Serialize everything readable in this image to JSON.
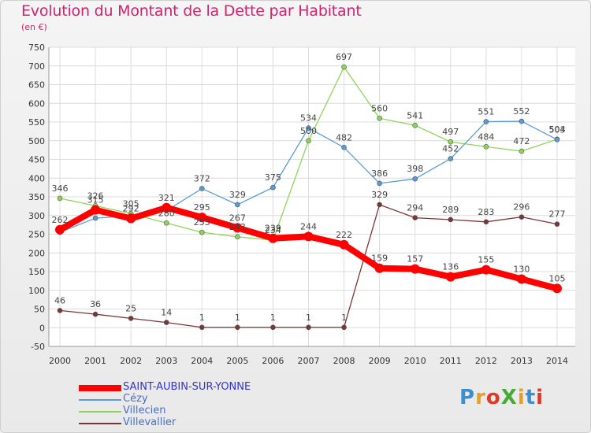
{
  "title": "Evolution du Montant de la Dette par Habitant",
  "unit": "(en €)",
  "logo": "ProXiti",
  "chart_data": {
    "type": "line",
    "title": "Evolution du Montant de la Dette par Habitant",
    "ylabel": "(en €)",
    "ylim": [
      -50,
      750
    ],
    "yticks": [
      -50,
      0,
      50,
      100,
      150,
      200,
      250,
      300,
      350,
      400,
      450,
      500,
      550,
      600,
      650,
      700,
      750
    ],
    "categories": [
      "2000",
      "2001",
      "2002",
      "2003",
      "2004",
      "2005",
      "2006",
      "2007",
      "2008",
      "2009",
      "2010",
      "2011",
      "2012",
      "2013",
      "2014"
    ],
    "grid": true,
    "legend": "bottom-left",
    "series": [
      {
        "name": "SAINT-AUBIN-SUR-YONNE",
        "color": "#ff0000",
        "values": [
          262,
          315,
          292,
          321,
          295,
          267,
          239,
          244,
          222,
          159,
          157,
          136,
          155,
          130,
          105
        ],
        "labels": [
          "262",
          "315",
          "292",
          "321",
          "295",
          "267",
          "239",
          "244",
          "222",
          "159",
          "157",
          "136",
          "155",
          "130",
          "105"
        ]
      },
      {
        "name": "Cézy",
        "color": "#5b9bd5",
        "values": [
          255,
          293,
          299,
          313,
          372,
          329,
          375,
          534,
          482,
          386,
          398,
          452,
          551,
          552,
          503
        ],
        "labels": [
          "",
          "",
          "",
          "",
          "372",
          "329",
          "375",
          "534",
          "482",
          "386",
          "398",
          "452",
          "551",
          "552",
          "503"
        ]
      },
      {
        "name": "Villecien",
        "color": "#8fd45a",
        "values": [
          346,
          326,
          305,
          280,
          255,
          243,
          234,
          500,
          697,
          560,
          541,
          497,
          484,
          472,
          504
        ],
        "labels": [
          "346",
          "326",
          "305",
          "280",
          "255",
          "243",
          "234",
          "500",
          "697",
          "560",
          "541",
          "497",
          "484",
          "472",
          "504"
        ]
      },
      {
        "name": "Villevallier",
        "color": "#7b3535",
        "values": [
          46,
          36,
          25,
          14,
          1,
          1,
          1,
          1,
          1,
          329,
          294,
          289,
          283,
          296,
          277
        ],
        "labels": [
          "46",
          "36",
          "25",
          "14",
          "1",
          "1",
          "1",
          "1",
          "1",
          "329",
          "294",
          "289",
          "283",
          "296",
          "277"
        ]
      }
    ]
  }
}
